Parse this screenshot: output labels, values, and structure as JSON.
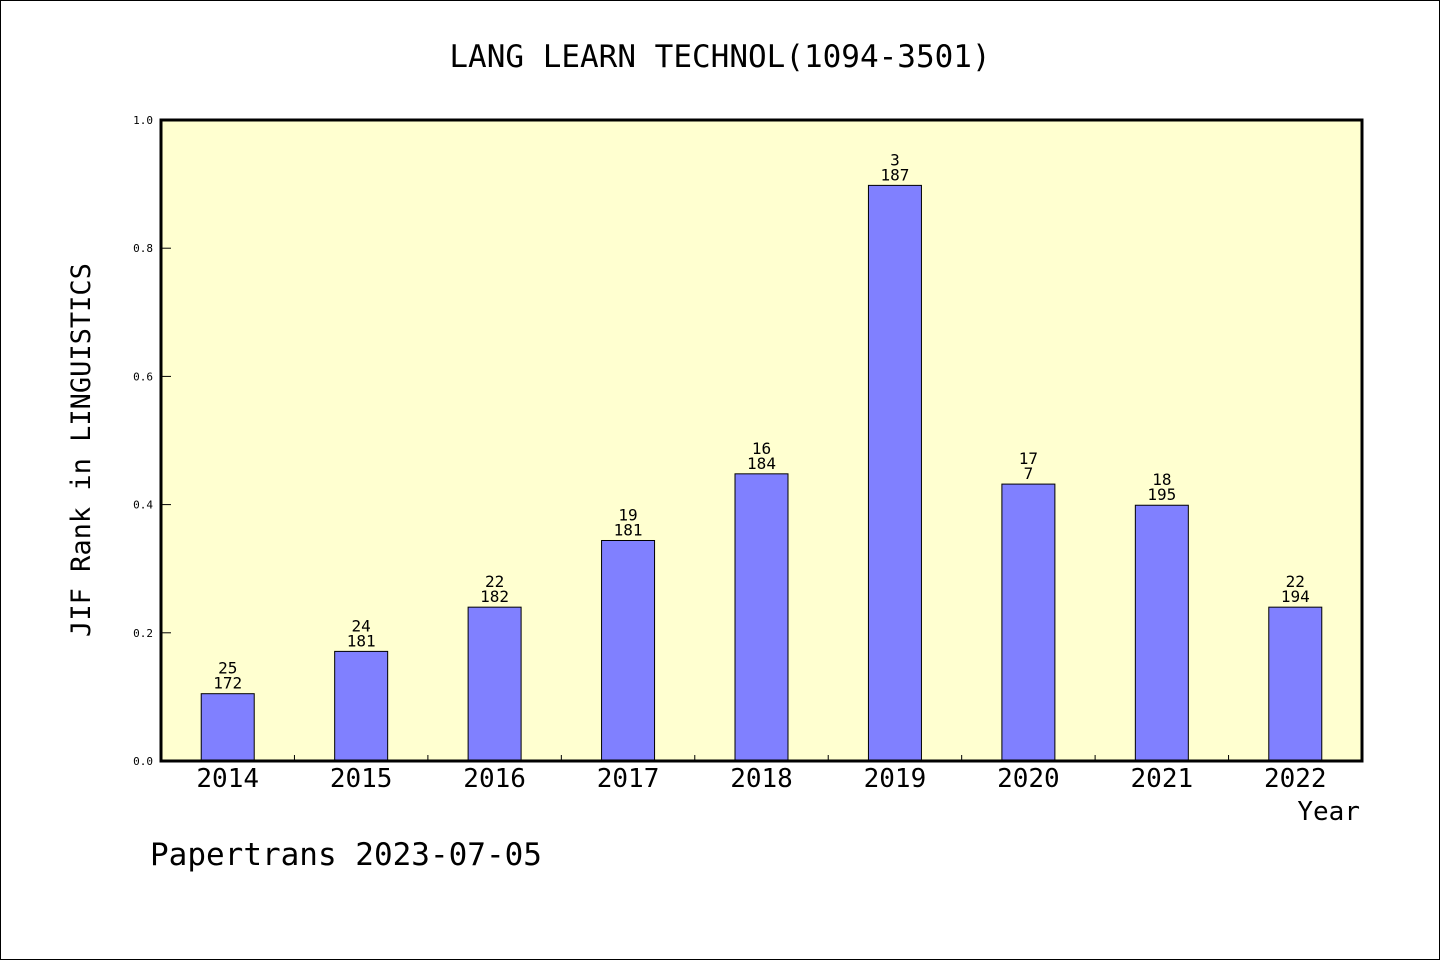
{
  "chart_data": {
    "type": "bar",
    "title": "LANG LEARN TECHNOL(1094-3501)",
    "ylabel": "JIF Rank in LINGUISTICS",
    "xlabel": "Year",
    "ylim": [
      0,
      1
    ],
    "yticks": [
      "0.0",
      "0.2",
      "0.4",
      "0.6",
      "0.8",
      "1.0"
    ],
    "categories": [
      "2014",
      "2015",
      "2016",
      "2017",
      "2018",
      "2019",
      "2020",
      "2021",
      "2022"
    ],
    "values": [
      0.105,
      0.171,
      0.24,
      0.344,
      0.448,
      0.898,
      0.432,
      0.399,
      0.24
    ],
    "labels_top": [
      "25",
      "24",
      "22",
      "19",
      "16",
      "3",
      "17",
      "18",
      "22"
    ],
    "labels_bottom": [
      "172",
      "181",
      "182",
      "181",
      "184",
      "187",
      "7",
      "195",
      "194"
    ],
    "plot_background": "#ffffd0",
    "bar_color": "#8080ff",
    "legend": "none",
    "grid": false
  },
  "footer": "Papertrans 2023-07-05"
}
